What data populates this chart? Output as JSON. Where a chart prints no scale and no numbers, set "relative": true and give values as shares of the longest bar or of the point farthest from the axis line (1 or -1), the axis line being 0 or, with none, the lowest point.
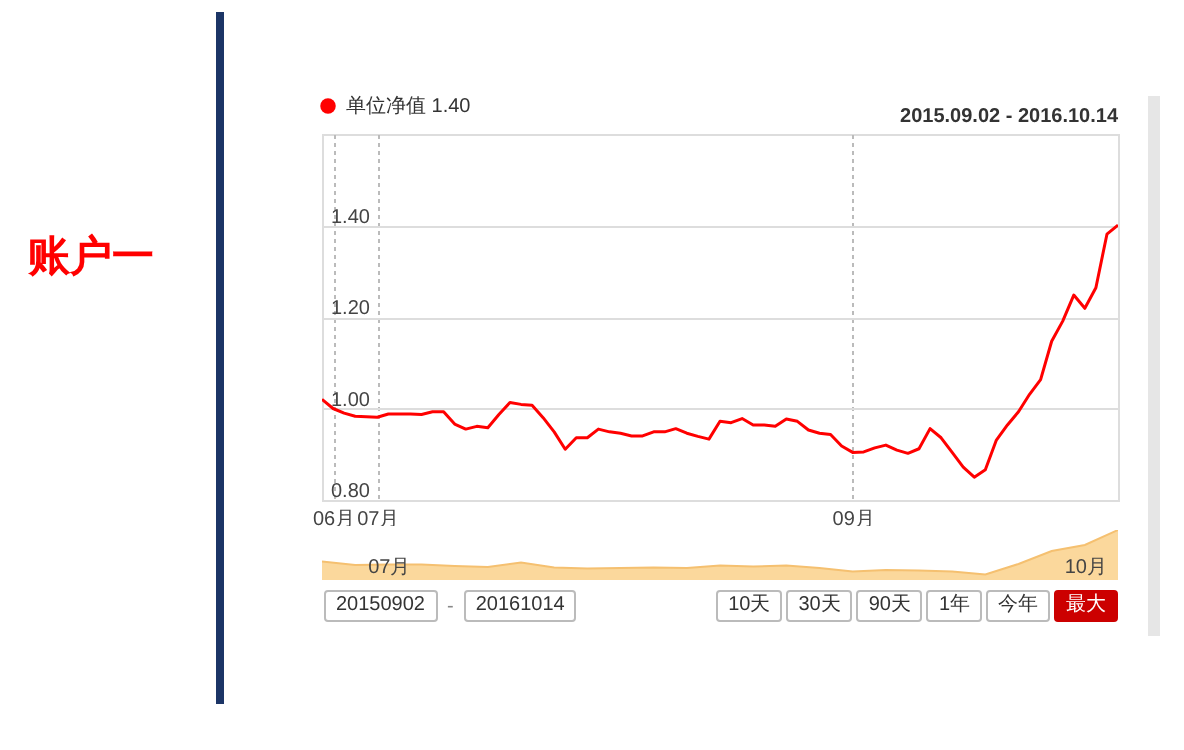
{
  "chart_data": [
    {
      "type": "line",
      "title": "账户一",
      "subtitle": "2015.09.02 - 2016.10.14",
      "categories": [
        null,
        "06月",
        null,
        null,
        null,
        "07月",
        null,
        null,
        null,
        null,
        null,
        null,
        null,
        null,
        null,
        null,
        null,
        null,
        null,
        null,
        null,
        null,
        null,
        null,
        null,
        null,
        null,
        null,
        null,
        null,
        null,
        null,
        null,
        null,
        null,
        null,
        null,
        null,
        null,
        null,
        null,
        null,
        null,
        null,
        null,
        null,
        null,
        null,
        "09月",
        null,
        null,
        null,
        null,
        null,
        null,
        null,
        null,
        null,
        null,
        null,
        null,
        null,
        null,
        null,
        null,
        null,
        null,
        null,
        null,
        null,
        null,
        null,
        null
      ],
      "series": [
        {
          "name": "单位净值 1.40",
          "color": "#ff0000",
          "values": [
            1.02,
            1.0,
            0.99,
            0.983,
            0.982,
            0.981,
            0.988,
            0.988,
            0.988,
            0.987,
            0.993,
            0.993,
            0.966,
            0.955,
            0.961,
            0.958,
            0.987,
            1.013,
            1.009,
            1.007,
            0.98,
            0.949,
            0.911,
            0.936,
            0.936,
            0.955,
            0.949,
            0.946,
            0.94,
            0.94,
            0.949,
            0.949,
            0.956,
            0.946,
            0.939,
            0.933,
            0.972,
            0.969,
            0.978,
            0.964,
            0.964,
            0.961,
            0.977,
            0.972,
            0.953,
            0.946,
            0.943,
            0.918,
            0.904,
            0.905,
            0.914,
            0.92,
            0.909,
            0.902,
            0.912,
            0.956,
            0.936,
            0.904,
            0.872,
            0.85,
            0.866,
            0.931,
            0.964,
            0.993,
            1.031,
            1.063,
            1.147,
            1.191,
            1.248,
            1.219,
            1.264,
            1.381,
            1.401
          ]
        }
      ],
      "ylim": [
        0.8,
        1.6
      ],
      "yticks": [
        {
          "value": 0.8,
          "label": "0.80"
        },
        {
          "value": 1.0,
          "label": "1.00"
        },
        {
          "value": 1.2,
          "label": "1.20"
        },
        {
          "value": 1.4,
          "label": "1.40"
        }
      ],
      "grid": true,
      "legend": "top left"
    },
    {
      "type": "area",
      "relative": true,
      "categories": [
        null,
        null,
        "07月",
        null,
        null,
        null,
        null,
        null,
        null,
        null,
        null,
        null,
        null,
        null,
        null,
        null,
        null,
        null,
        null,
        null,
        null,
        null,
        null,
        "10月",
        null
      ],
      "series": [
        {
          "color": "#fbd89c",
          "values": [
            0.37,
            0.3,
            0.31,
            0.31,
            0.28,
            0.26,
            0.35,
            0.25,
            0.23,
            0.24,
            0.25,
            0.24,
            0.29,
            0.27,
            0.29,
            0.24,
            0.17,
            0.2,
            0.19,
            0.17,
            0.11,
            0.32,
            0.58,
            0.7,
            1.0
          ]
        }
      ],
      "annotations": [
        "20150902",
        "-",
        "20161014",
        "10天",
        "30天",
        "90天",
        "1年",
        "今年",
        "最大"
      ]
    }
  ]
}
